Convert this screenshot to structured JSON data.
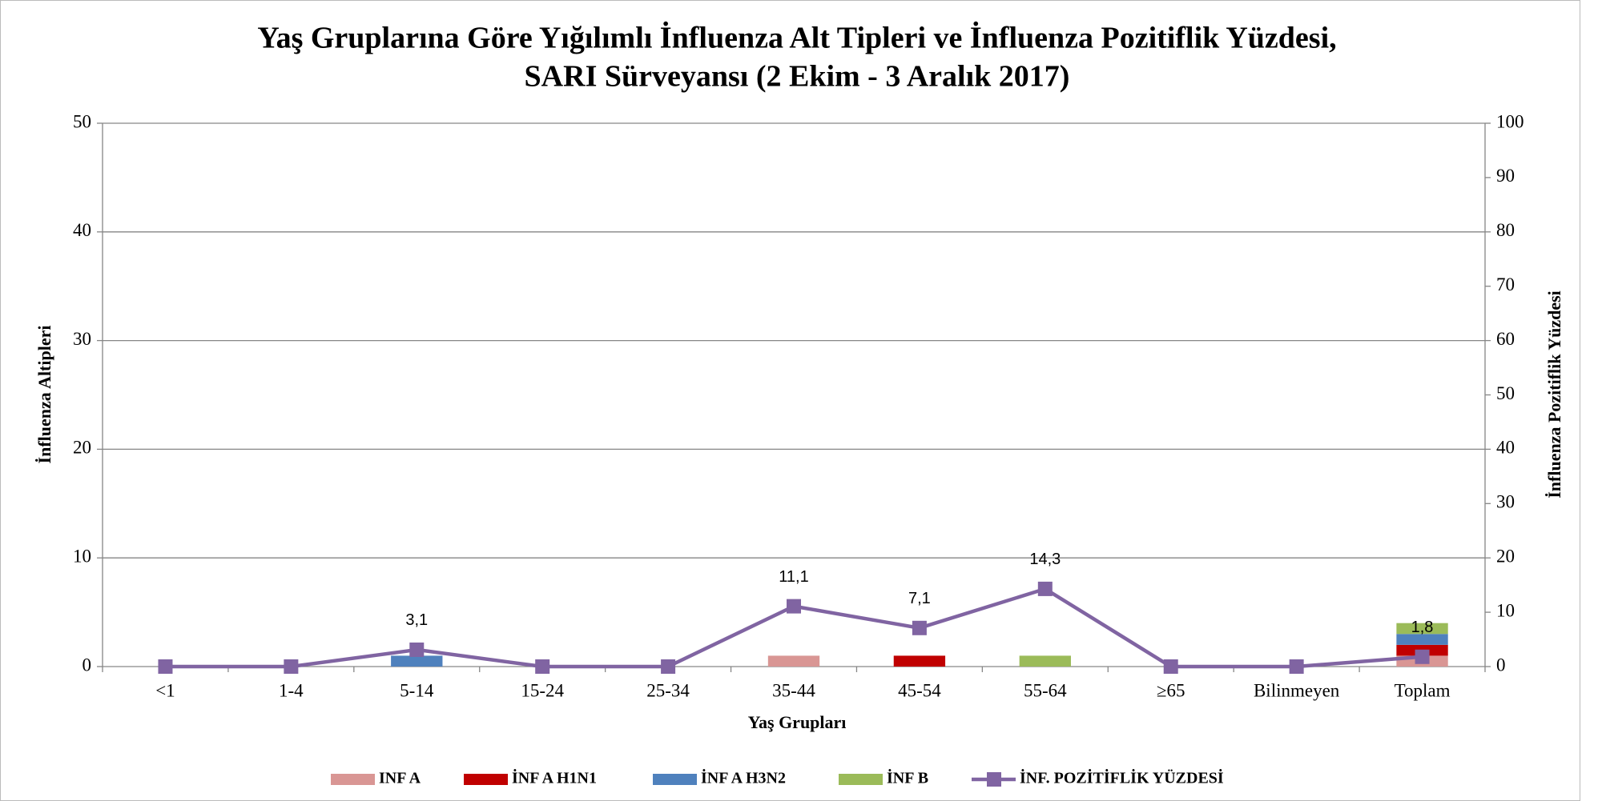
{
  "chart_data": {
    "type": "bar",
    "title": [
      "Yaş Gruplarına Göre  Yığılımlı İnfluenza Alt Tipleri ve İnfluenza Pozitiflik Yüzdesi,",
      "SARI Sürveyansı (2 Ekim - 3 Aralık 2017)"
    ],
    "x_label": "Yaş Grupları",
    "y_label": "İnfluenza Altipleri",
    "y2_label": "İnfluenza Pozitiflik Yüzdesi",
    "categories": [
      "<1",
      "1-4",
      "5-14",
      "15-24",
      "25-34",
      "35-44",
      "45-54",
      "55-64",
      "≥65",
      "Bilinmeyen",
      "Toplam"
    ],
    "stacked": true,
    "grid": true,
    "legend": "bottom",
    "ylim": [
      0,
      50
    ],
    "yticks": [
      0,
      10,
      20,
      30,
      40,
      50
    ],
    "y2lim": [
      0,
      100
    ],
    "y2ticks": [
      0,
      10,
      20,
      30,
      40,
      50,
      60,
      70,
      80,
      90,
      100
    ],
    "series": [
      {
        "name": "INF A",
        "color": "#d99694",
        "values": [
          0,
          0,
          0,
          0,
          0,
          1,
          0,
          0,
          0,
          0,
          1
        ]
      },
      {
        "name": "İNF A H1N1",
        "color": "#c00000",
        "values": [
          0,
          0,
          0,
          0,
          0,
          0,
          1,
          0,
          0,
          0,
          1
        ]
      },
      {
        "name": "İNF A H3N2",
        "color": "#4f81bd",
        "values": [
          0,
          0,
          1,
          0,
          0,
          0,
          0,
          0,
          0,
          0,
          1
        ]
      },
      {
        "name": "İNF B",
        "color": "#9bbb59",
        "values": [
          0,
          0,
          0,
          0,
          0,
          0,
          0,
          1,
          0,
          0,
          1
        ]
      },
      {
        "name": "İNF. POZİTİFLİK YÜZDESİ",
        "color": "#8064a2",
        "type": "line",
        "axis": "y2",
        "values": [
          0,
          0,
          3.1,
          0,
          0,
          11.1,
          7.1,
          14.3,
          0,
          0,
          1.8
        ],
        "value_labels": [
          null,
          null,
          "3,1",
          null,
          null,
          "11,1",
          "7,1",
          "14,3",
          null,
          null,
          "1,8"
        ]
      }
    ]
  }
}
